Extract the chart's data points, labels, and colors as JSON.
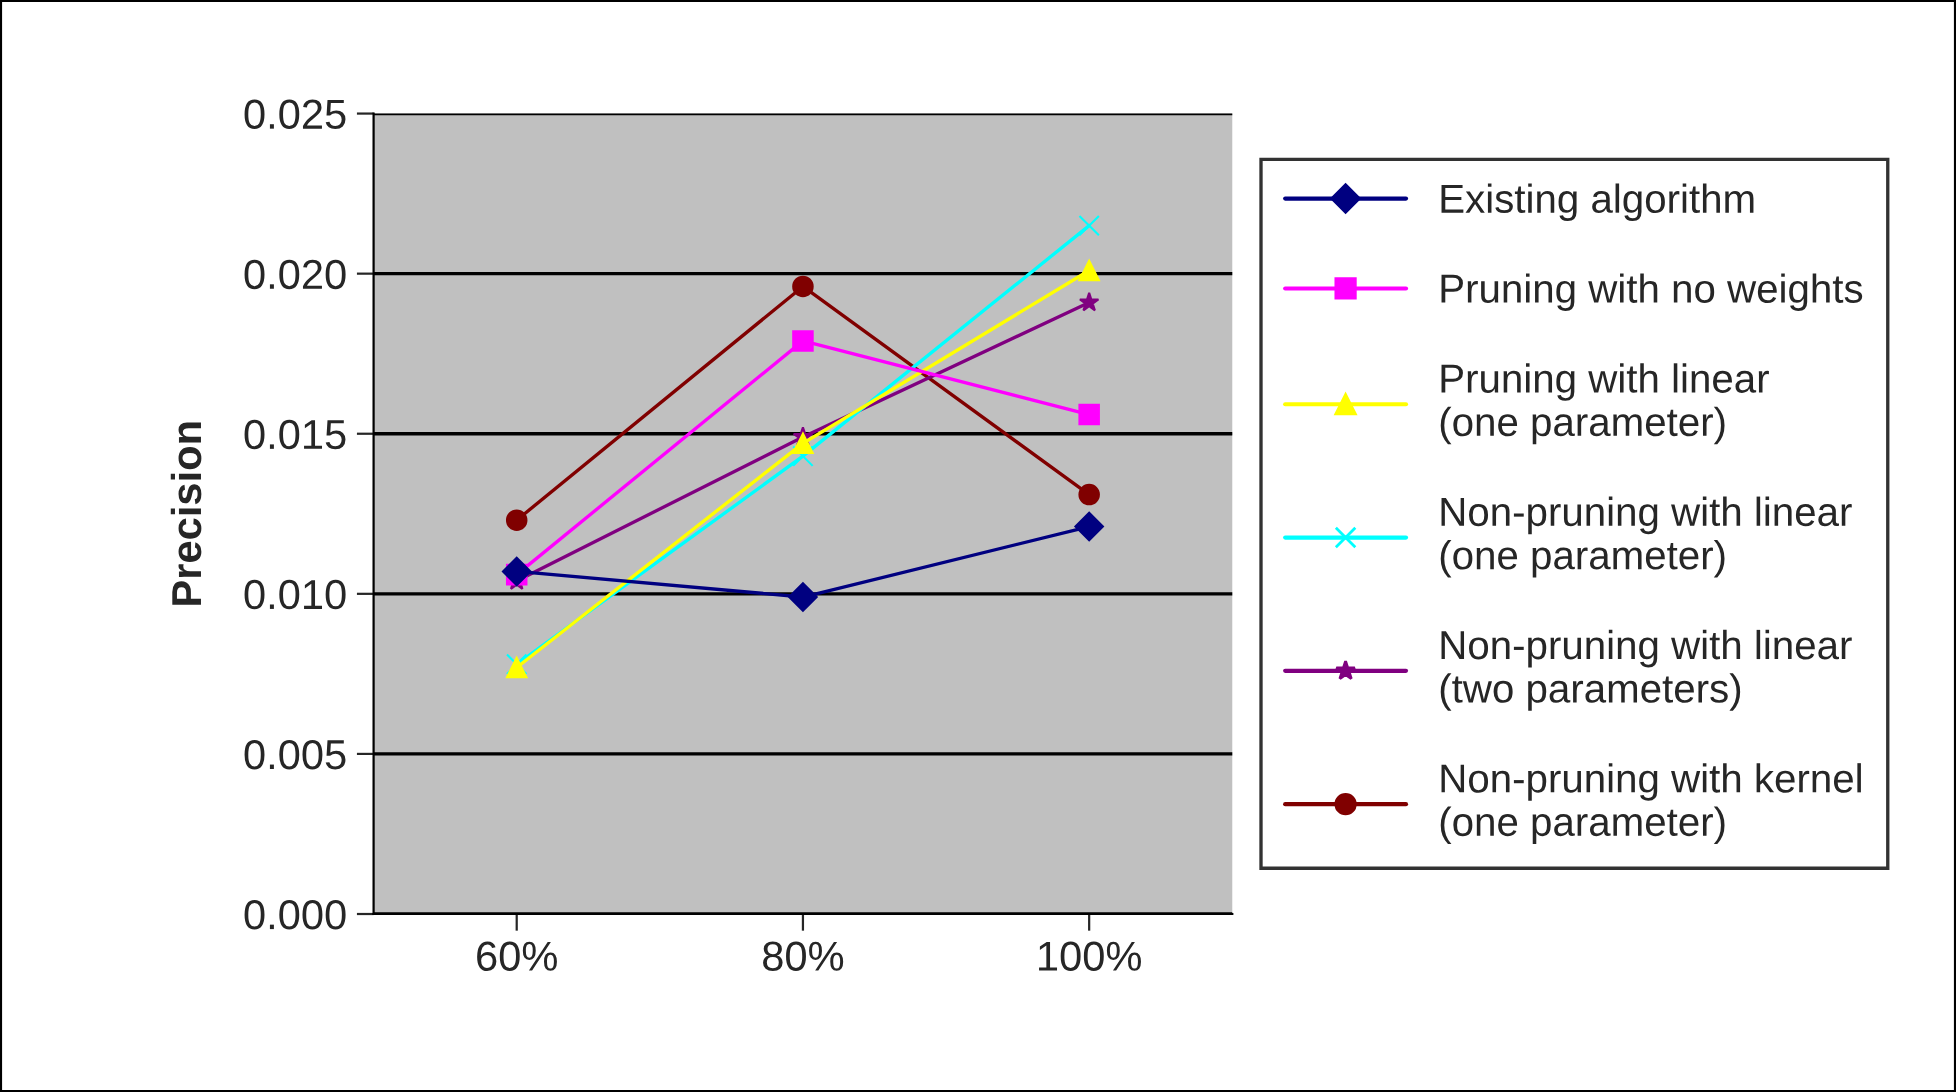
{
  "chart_data": {
    "type": "line",
    "ylabel": "Precision",
    "categories": [
      "60%",
      "80%",
      "100%"
    ],
    "series": [
      {
        "name": "Existing algorithm",
        "color": "#000080",
        "marker": "diamond",
        "values": [
          0.0107,
          0.0099,
          0.0121
        ]
      },
      {
        "name": "Pruning with no weights",
        "color": "#ff00ff",
        "marker": "square",
        "values": [
          0.0106,
          0.0179,
          0.0156
        ]
      },
      {
        "name": "Pruning with linear\n(one parameter)",
        "color": "#ffff00",
        "marker": "triangle",
        "values": [
          0.0077,
          0.0147,
          0.0201
        ]
      },
      {
        "name": "Non-pruning with linear\n(one parameter)",
        "color": "#00ffff",
        "marker": "cross",
        "values": [
          0.0078,
          0.0143,
          0.0215
        ]
      },
      {
        "name": "Non-pruning with linear\n(two parameters)",
        "color": "#800080",
        "marker": "star",
        "values": [
          0.0104,
          0.0149,
          0.0191
        ]
      },
      {
        "name": "Non-pruning with kernel\n(one parameter)",
        "color": "#800000",
        "marker": "circle",
        "values": [
          0.0123,
          0.0196,
          0.0131
        ]
      }
    ],
    "ylim": [
      0,
      0.025
    ],
    "yticks": [
      {
        "value": 0,
        "label": "0.000"
      },
      {
        "value": 0.005,
        "label": "0.005"
      },
      {
        "value": 0.01,
        "label": "0.010"
      },
      {
        "value": 0.015,
        "label": "0.015"
      },
      {
        "value": 0.02,
        "label": "0.020"
      },
      {
        "value": 0.025,
        "label": "0.025"
      }
    ],
    "grid": "y",
    "legend": "right"
  }
}
